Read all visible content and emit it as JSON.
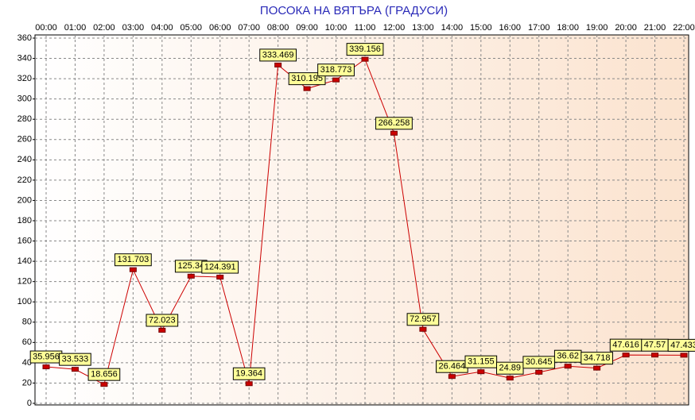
{
  "chart_data": {
    "type": "line",
    "title": "ПОСОКА НА ВЯТЪРА    (ГРАДУСИ)",
    "categories": [
      "00:00",
      "01:00",
      "02:00",
      "03:00",
      "04:00",
      "05:00",
      "06:00",
      "07:00",
      "08:00",
      "09:00",
      "10:00",
      "11:00",
      "12:00",
      "13:00",
      "14:00",
      "15:00",
      "16:00",
      "17:00",
      "18:00",
      "19:00",
      "20:00",
      "21:00",
      "22:00"
    ],
    "values": [
      35.956,
      33.533,
      18.656,
      131.703,
      72.023,
      125.34,
      124.391,
      19.364,
      333.469,
      310.195,
      318.773,
      339.156,
      266.258,
      72.957,
      26.464,
      31.155,
      24.89,
      30.645,
      36.62,
      34.718,
      47.616,
      47.57,
      47.433
    ],
    "color": "#cc0000",
    "ylim": [
      0,
      360
    ],
    "yticks": [
      0,
      20,
      40,
      60,
      80,
      100,
      120,
      140,
      160,
      180,
      200,
      220,
      240,
      260,
      280,
      300,
      320,
      340,
      360
    ],
    "grid": true
  }
}
